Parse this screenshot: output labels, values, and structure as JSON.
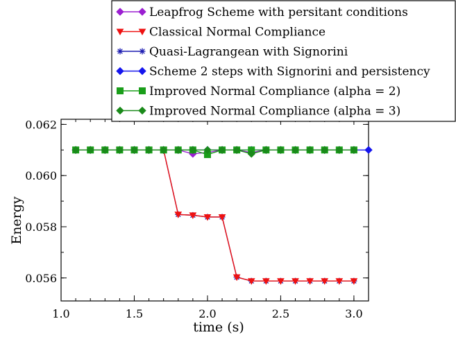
{
  "chart_data": {
    "type": "line",
    "title": "",
    "xlabel": "time (s)",
    "ylabel": "Energy",
    "xlim": [
      1.0,
      3.1
    ],
    "ylim": [
      0.0551,
      0.0622
    ],
    "xticks": [
      1.0,
      1.5,
      2.0,
      2.5,
      3.0
    ],
    "xtick_labels": [
      "1.0",
      "1.5",
      "2.0",
      "2.5",
      "3.0"
    ],
    "yticks": [
      0.056,
      0.058,
      0.06,
      0.062
    ],
    "ytick_labels": [
      "0.056",
      "0.058",
      "0.060",
      "0.062"
    ],
    "grid": false,
    "legend_position": "top-right",
    "series": [
      {
        "name": "Leapfrog Scheme with persitant conditions",
        "color": "#9b1fd1",
        "marker": "diamond",
        "x": [
          1.1,
          1.2,
          1.3,
          1.4,
          1.5,
          1.6,
          1.7,
          1.8,
          1.9,
          2.0,
          2.1,
          2.2,
          2.3,
          2.4
        ],
        "values": [
          0.061,
          0.061,
          0.061,
          0.061,
          0.061,
          0.061,
          0.061,
          0.061,
          0.06085,
          0.0609,
          0.061,
          0.061,
          0.0609,
          0.061
        ]
      },
      {
        "name": "Classical Normal Compliance",
        "color": "#ee1111",
        "marker": "triangle-down",
        "x": [
          1.1,
          1.2,
          1.3,
          1.4,
          1.5,
          1.6,
          1.7,
          1.8,
          1.9,
          2.0,
          2.1,
          2.2,
          2.3,
          2.4,
          2.5,
          2.6,
          2.7,
          2.8,
          2.9,
          3.0
        ],
        "values": [
          0.061,
          0.061,
          0.061,
          0.061,
          0.061,
          0.061,
          0.061,
          0.05848,
          0.05845,
          0.05838,
          0.05838,
          0.05603,
          0.05588,
          0.05588,
          0.05588,
          0.05588,
          0.05588,
          0.05588,
          0.05588,
          0.05588
        ]
      },
      {
        "name": "Quasi-Lagrangean with Signorini",
        "color": "#1a1ab0",
        "marker": "star",
        "x": [
          1.1,
          1.2,
          1.3,
          1.4,
          1.5,
          1.6,
          1.7,
          1.8,
          1.9,
          2.0,
          2.1,
          2.2,
          2.3,
          2.4,
          2.5,
          2.6,
          2.7,
          2.8,
          2.9,
          3.0
        ],
        "values": [
          0.061,
          0.061,
          0.061,
          0.061,
          0.061,
          0.061,
          0.061,
          0.05848,
          0.05845,
          0.05838,
          0.05838,
          0.05603,
          0.05588,
          0.05588,
          0.05588,
          0.05588,
          0.05588,
          0.05588,
          0.05588,
          0.05588
        ]
      },
      {
        "name": "Scheme 2 steps with Signorini and persistency",
        "color": "#1515ee",
        "marker": "diamond",
        "x": [
          1.1,
          1.2,
          1.3,
          1.4,
          1.5,
          1.6,
          1.7,
          1.8,
          1.9,
          2.0,
          2.1,
          2.2,
          2.3,
          2.4,
          2.5,
          2.6,
          2.7,
          2.8,
          2.9,
          3.0,
          3.1
        ],
        "values": [
          0.061,
          0.061,
          0.061,
          0.061,
          0.061,
          0.061,
          0.061,
          0.061,
          0.061,
          0.061,
          0.061,
          0.061,
          0.061,
          0.061,
          0.061,
          0.061,
          0.061,
          0.061,
          0.061,
          0.061,
          0.061
        ]
      },
      {
        "name": "Improved Normal Compliance (alpha = 2)",
        "color": "#1a9e1a",
        "marker": "square",
        "x": [
          1.1,
          1.2,
          1.3,
          1.4,
          1.5,
          1.6,
          1.7,
          1.8,
          1.9,
          2.0,
          2.1,
          2.2,
          2.3,
          2.4,
          2.5,
          2.6,
          2.7,
          2.8,
          2.9,
          3.0
        ],
        "values": [
          0.061,
          0.061,
          0.061,
          0.061,
          0.061,
          0.061,
          0.061,
          0.061,
          0.061,
          0.06082,
          0.061,
          0.061,
          0.061,
          0.061,
          0.061,
          0.061,
          0.061,
          0.061,
          0.061,
          0.061
        ]
      },
      {
        "name": "Improved Normal Compliance (alpha = 3)",
        "color": "#1a8a1a",
        "marker": "diamond",
        "x": [
          1.1,
          1.2,
          1.3,
          1.4,
          1.5,
          1.6,
          1.7,
          1.8,
          1.9,
          2.0,
          2.1,
          2.2,
          2.3,
          2.4,
          2.5,
          2.6,
          2.7,
          2.8,
          2.9,
          3.0
        ],
        "values": [
          0.061,
          0.061,
          0.061,
          0.061,
          0.061,
          0.061,
          0.061,
          0.061,
          0.061,
          0.061,
          0.061,
          0.061,
          0.06085,
          0.061,
          0.061,
          0.061,
          0.061,
          0.061,
          0.061,
          0.061
        ]
      }
    ]
  }
}
